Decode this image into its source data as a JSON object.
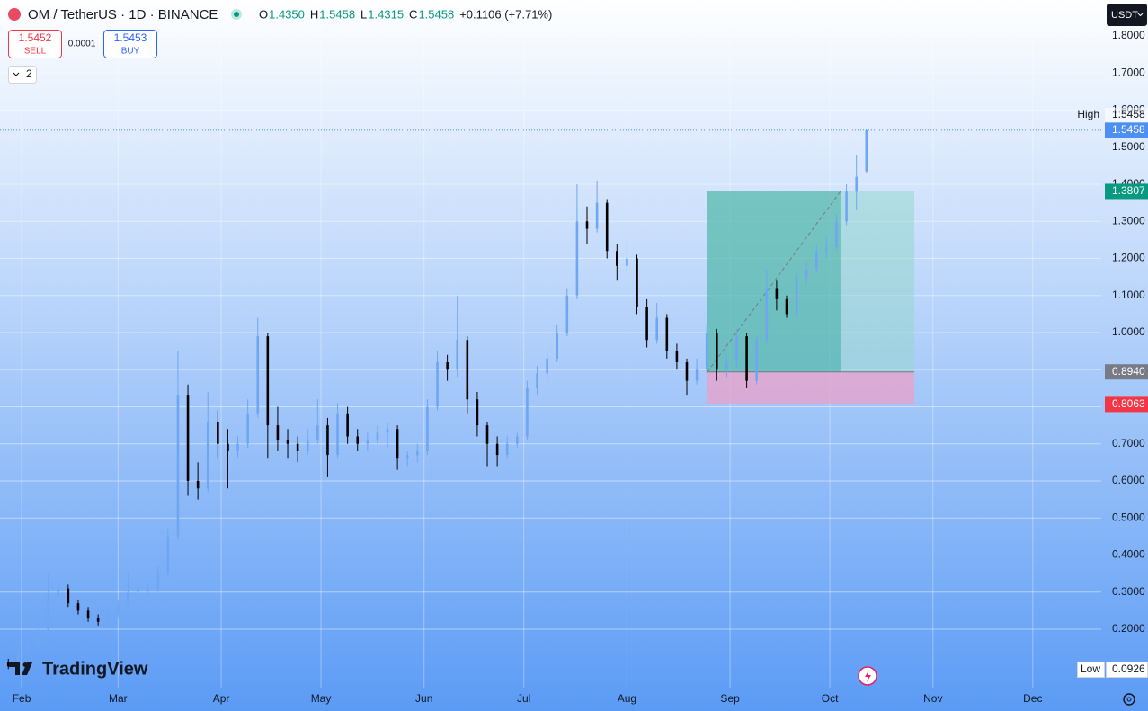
{
  "header": {
    "symbol": "OM / TetherUS · 1D · BINANCE",
    "ohlc": [
      {
        "key": "O",
        "value": "1.4350"
      },
      {
        "key": "H",
        "value": "1.5458"
      },
      {
        "key": "L",
        "value": "1.4315"
      },
      {
        "key": "C",
        "value": "1.5458"
      }
    ],
    "change": "+0.1106 (+7.71%)"
  },
  "trade": {
    "sell": {
      "price": "1.5452",
      "label": "SELL"
    },
    "spread": "0.0001",
    "buy": {
      "price": "1.5453",
      "label": "BUY"
    }
  },
  "indicators_toggle": "2",
  "currency": "USDT",
  "brand": "TradingView",
  "chart_data": {
    "type": "candlestick",
    "up_color": "#6fa6f2",
    "down_color": "#000000",
    "grid": true,
    "xlim": [
      -6.5,
      324.6
    ],
    "xticks": [
      {
        "value": 0,
        "label": "Feb"
      },
      {
        "value": 29,
        "label": "Mar"
      },
      {
        "value": 60,
        "label": "Apr"
      },
      {
        "value": 90,
        "label": "May"
      },
      {
        "value": 121,
        "label": "Jun"
      },
      {
        "value": 151,
        "label": "Jul"
      },
      {
        "value": 182,
        "label": "Aug"
      },
      {
        "value": 213,
        "label": "Sep"
      },
      {
        "value": 243,
        "label": "Oct"
      },
      {
        "value": 274,
        "label": "Nov"
      },
      {
        "value": 304,
        "label": "Dec"
      }
    ],
    "ylim": [
      0.0424,
      1.897
    ],
    "yticks": [
      {
        "value": 1.8,
        "label": "1.8000"
      },
      {
        "value": 1.7,
        "label": "1.7000"
      },
      {
        "value": 1.6,
        "label": "1.6000"
      },
      {
        "value": 1.5,
        "label": "1.5000"
      },
      {
        "value": 1.4,
        "label": "1.4000"
      },
      {
        "value": 1.3,
        "label": "1.3000"
      },
      {
        "value": 1.2,
        "label": "1.2000"
      },
      {
        "value": 1.1,
        "label": "1.1000"
      },
      {
        "value": 1.0,
        "label": "1.0000"
      },
      {
        "value": 0.9,
        "label": "0.9000"
      },
      {
        "value": 0.8,
        "label": "0.8000"
      },
      {
        "value": 0.7,
        "label": "0.7000"
      },
      {
        "value": 0.6,
        "label": "0.6000"
      },
      {
        "value": 0.5,
        "label": "0.5000"
      },
      {
        "value": 0.4,
        "label": "0.4000"
      },
      {
        "value": 0.3,
        "label": "0.3000"
      },
      {
        "value": 0.2,
        "label": "0.2000"
      }
    ],
    "x": [
      -4,
      -1,
      2,
      5,
      8,
      11,
      14,
      17,
      20,
      23,
      26,
      29,
      32,
      35,
      38,
      41,
      44,
      47,
      50,
      53,
      56,
      59,
      62,
      65,
      68,
      71,
      74,
      77,
      80,
      83,
      86,
      89,
      92,
      95,
      98,
      101,
      104,
      107,
      110,
      113,
      116,
      119,
      122,
      125,
      128,
      131,
      134,
      137,
      140,
      143,
      146,
      149,
      152,
      155,
      158,
      161,
      164,
      167,
      170,
      173,
      176,
      179,
      182,
      185,
      188,
      191,
      194,
      197,
      200,
      203,
      206,
      209,
      212,
      215,
      218,
      221,
      224,
      227,
      230,
      233,
      236,
      239,
      242,
      245,
      248,
      251,
      254
    ],
    "ohlc": [
      [
        0.11,
        0.12,
        0.0926,
        0.1
      ],
      [
        0.1,
        0.15,
        0.1,
        0.14
      ],
      [
        0.14,
        0.17,
        0.13,
        0.16
      ],
      [
        0.16,
        0.2,
        0.15,
        0.19
      ],
      [
        0.19,
        0.35,
        0.19,
        0.29
      ],
      [
        0.29,
        0.33,
        0.28,
        0.31
      ],
      [
        0.31,
        0.32,
        0.26,
        0.27
      ],
      [
        0.27,
        0.28,
        0.24,
        0.25
      ],
      [
        0.25,
        0.26,
        0.22,
        0.23
      ],
      [
        0.23,
        0.24,
        0.21,
        0.22
      ],
      [
        0.22,
        0.25,
        0.21,
        0.24
      ],
      [
        0.24,
        0.28,
        0.23,
        0.27
      ],
      [
        0.27,
        0.35,
        0.26,
        0.3
      ],
      [
        0.3,
        0.33,
        0.29,
        0.31
      ],
      [
        0.31,
        0.32,
        0.29,
        0.31
      ],
      [
        0.31,
        0.37,
        0.3,
        0.35
      ],
      [
        0.35,
        0.47,
        0.34,
        0.45
      ],
      [
        0.45,
        0.95,
        0.44,
        0.83
      ],
      [
        0.83,
        0.86,
        0.56,
        0.6
      ],
      [
        0.6,
        0.65,
        0.55,
        0.58
      ],
      [
        0.58,
        0.84,
        0.57,
        0.76
      ],
      [
        0.76,
        0.79,
        0.66,
        0.7
      ],
      [
        0.7,
        0.74,
        0.58,
        0.68
      ],
      [
        0.68,
        0.72,
        0.66,
        0.7
      ],
      [
        0.7,
        0.82,
        0.69,
        0.78
      ],
      [
        0.78,
        1.04,
        0.77,
        0.99
      ],
      [
        0.99,
        1.0,
        0.66,
        0.75
      ],
      [
        0.75,
        0.8,
        0.68,
        0.71
      ],
      [
        0.71,
        0.74,
        0.66,
        0.7
      ],
      [
        0.7,
        0.72,
        0.65,
        0.68
      ],
      [
        0.68,
        0.74,
        0.67,
        0.71
      ],
      [
        0.71,
        0.82,
        0.7,
        0.75
      ],
      [
        0.75,
        0.77,
        0.61,
        0.67
      ],
      [
        0.67,
        0.81,
        0.66,
        0.78
      ],
      [
        0.78,
        0.8,
        0.7,
        0.72
      ],
      [
        0.72,
        0.74,
        0.68,
        0.7
      ],
      [
        0.7,
        0.73,
        0.68,
        0.71
      ],
      [
        0.71,
        0.75,
        0.7,
        0.73
      ],
      [
        0.73,
        0.76,
        0.69,
        0.74
      ],
      [
        0.74,
        0.75,
        0.63,
        0.66
      ],
      [
        0.66,
        0.68,
        0.64,
        0.67
      ],
      [
        0.67,
        0.7,
        0.65,
        0.68
      ],
      [
        0.68,
        0.82,
        0.67,
        0.8
      ],
      [
        0.8,
        0.95,
        0.79,
        0.92
      ],
      [
        0.92,
        0.94,
        0.87,
        0.9
      ],
      [
        0.9,
        1.1,
        0.88,
        0.98
      ],
      [
        0.98,
        0.99,
        0.78,
        0.82
      ],
      [
        0.82,
        0.84,
        0.72,
        0.75
      ],
      [
        0.75,
        0.76,
        0.64,
        0.7
      ],
      [
        0.7,
        0.72,
        0.64,
        0.67
      ],
      [
        0.67,
        0.72,
        0.66,
        0.7
      ],
      [
        0.7,
        0.73,
        0.69,
        0.72
      ],
      [
        0.72,
        0.87,
        0.71,
        0.85
      ],
      [
        0.85,
        0.91,
        0.83,
        0.89
      ],
      [
        0.89,
        0.95,
        0.87,
        0.93
      ],
      [
        0.93,
        1.02,
        0.92,
        1.0
      ],
      [
        1.0,
        1.12,
        0.99,
        1.1
      ],
      [
        1.1,
        1.4,
        1.09,
        1.3
      ],
      [
        1.3,
        1.34,
        1.24,
        1.28
      ],
      [
        1.28,
        1.41,
        1.27,
        1.35
      ],
      [
        1.35,
        1.36,
        1.2,
        1.22
      ],
      [
        1.22,
        1.24,
        1.14,
        1.18
      ],
      [
        1.18,
        1.25,
        1.16,
        1.2
      ],
      [
        1.2,
        1.21,
        1.05,
        1.07
      ],
      [
        1.07,
        1.09,
        0.96,
        0.98
      ],
      [
        0.98,
        1.08,
        0.97,
        1.04
      ],
      [
        1.04,
        1.05,
        0.93,
        0.95
      ],
      [
        0.95,
        0.97,
        0.9,
        0.92
      ],
      [
        0.92,
        0.93,
        0.83,
        0.87
      ],
      [
        0.87,
        0.93,
        0.86,
        0.9
      ],
      [
        0.9,
        1.02,
        0.89,
        1.0
      ],
      [
        1.0,
        1.01,
        0.87,
        0.9
      ],
      [
        0.9,
        0.94,
        0.88,
        0.92
      ],
      [
        0.92,
        1.01,
        0.9,
        0.99
      ],
      [
        0.99,
        1.0,
        0.85,
        0.87
      ],
      [
        0.87,
        0.99,
        0.86,
        0.98
      ],
      [
        0.98,
        1.17,
        0.97,
        1.12
      ],
      [
        1.12,
        1.14,
        1.06,
        1.09
      ],
      [
        1.09,
        1.1,
        1.04,
        1.05
      ],
      [
        1.05,
        1.17,
        1.04,
        1.15
      ],
      [
        1.15,
        1.19,
        1.13,
        1.17
      ],
      [
        1.17,
        1.24,
        1.16,
        1.22
      ],
      [
        1.22,
        1.26,
        1.2,
        1.23
      ],
      [
        1.23,
        1.32,
        1.22,
        1.3
      ],
      [
        1.3,
        1.4,
        1.29,
        1.38
      ],
      [
        1.38,
        1.48,
        1.33,
        1.42
      ],
      [
        1.435,
        1.5458,
        1.4315,
        1.5458
      ]
    ],
    "position": {
      "start": 206.2,
      "end": 268.4,
      "target_hit": 246.2,
      "target": 1.3807,
      "entry": 0.894,
      "stop": 0.8063
    },
    "price_tags": [
      {
        "value": 1.5458,
        "label": "1.5458",
        "color": "#4d8ff2"
      },
      {
        "value": 1.3807,
        "label": "1.3807",
        "color": "#089981"
      },
      {
        "value": 0.894,
        "label": "0.8940",
        "color": "#787b86"
      },
      {
        "value": 0.8063,
        "label": "0.8063",
        "color": "#f23645"
      }
    ],
    "high_marker": {
      "label": "High",
      "value": {
        "value": 1.5458,
        "label": "1.5458"
      }
    },
    "low_marker": {
      "label": "Low",
      "value": {
        "value": 0.0926,
        "label": "0.0926"
      }
    }
  }
}
